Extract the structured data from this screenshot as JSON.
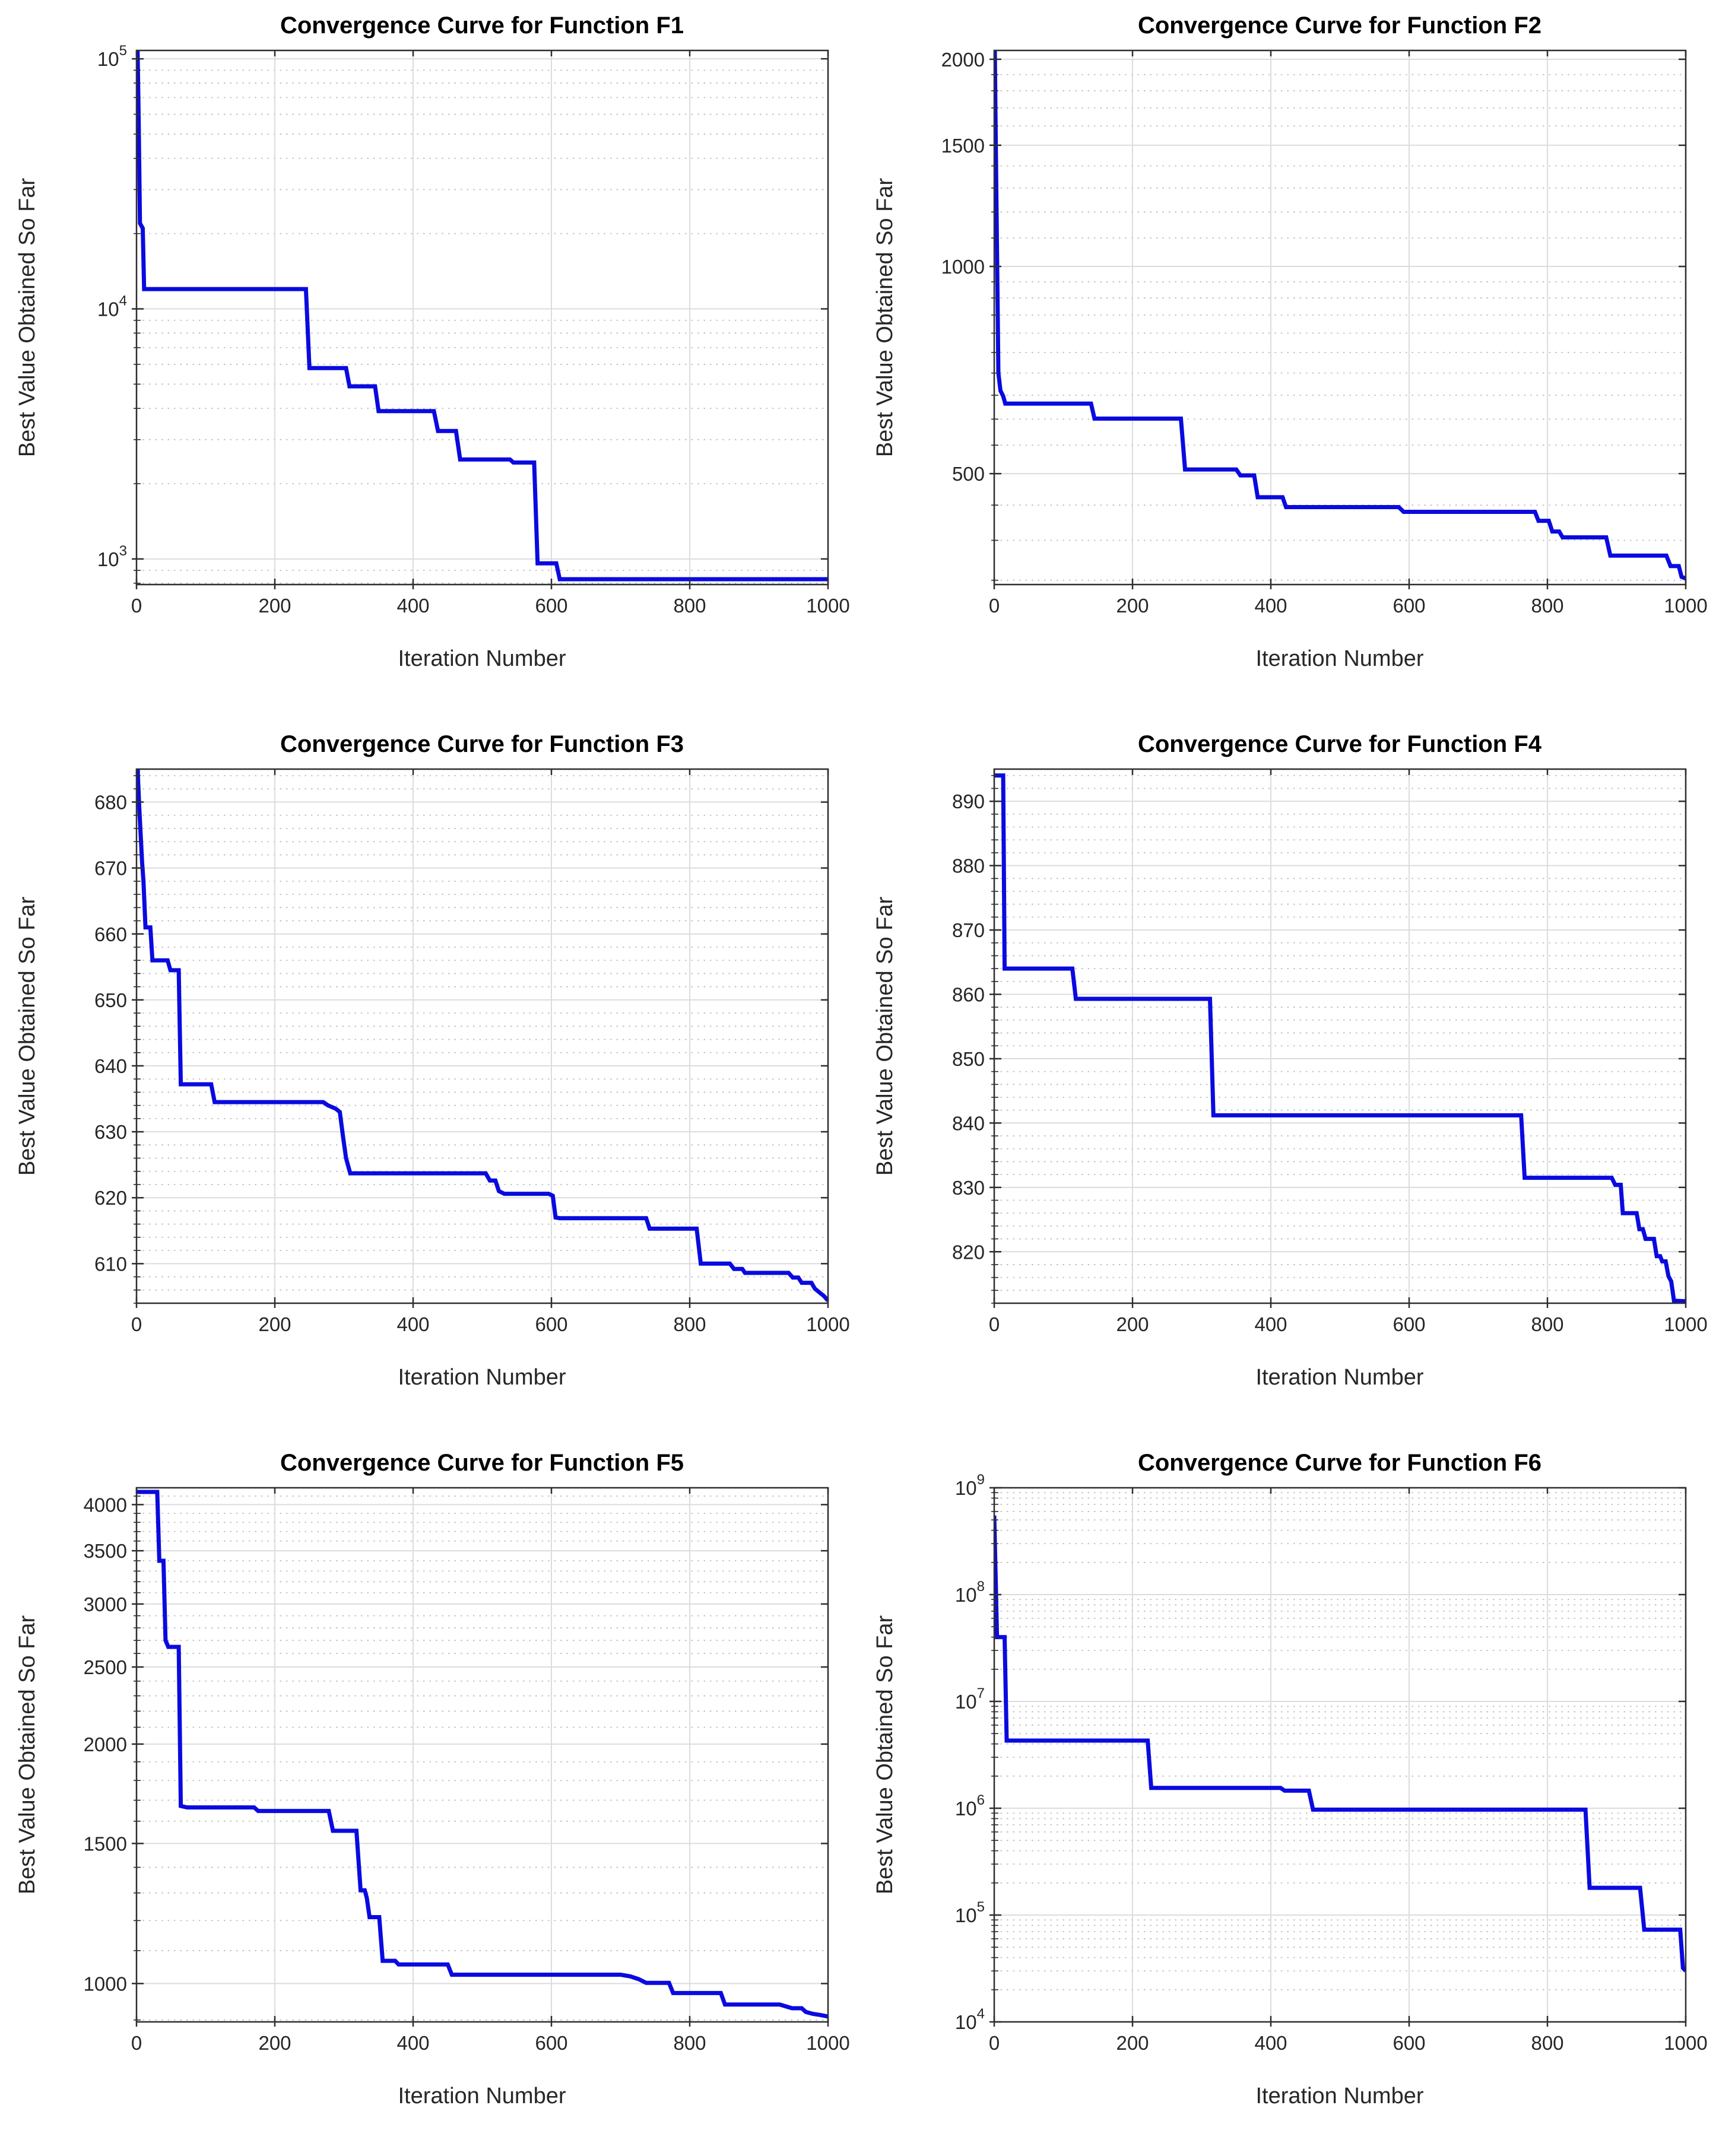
{
  "page": {
    "background": "#ffffff",
    "line_color": "#0a0ae0",
    "grid_major_color": "#dcdcdc",
    "grid_minor_color": "#bdbdbd",
    "axis_color": "#2e2e2e",
    "text_color": "#262626"
  },
  "chart_data": [
    {
      "type": "line",
      "step": true,
      "title": "Convergence Curve for Function F1",
      "xlabel": "Iteration Number",
      "ylabel": "Best Value Obtained So Far",
      "xlim": [
        0,
        1000
      ],
      "xticks": [
        0,
        200,
        400,
        600,
        800,
        1000
      ],
      "yscale": "log",
      "ylim": [
        790,
        108000
      ],
      "yticks": [
        1000,
        10000,
        100000
      ],
      "ytick_style": "pow10",
      "minor_rule": {
        "type": "log-decade"
      },
      "series": [
        {
          "name": "best-value",
          "points": [
            [
              0,
              200000
            ],
            [
              3,
              60000
            ],
            [
              5,
              22000
            ],
            [
              9,
              21000
            ],
            [
              11,
              12000
            ],
            [
              245,
              12000
            ],
            [
              250,
              5800
            ],
            [
              303,
              5800
            ],
            [
              308,
              4900
            ],
            [
              345,
              4900
            ],
            [
              350,
              3900
            ],
            [
              430,
              3900
            ],
            [
              436,
              3250
            ],
            [
              462,
              3250
            ],
            [
              468,
              2500
            ],
            [
              540,
              2500
            ],
            [
              545,
              2430
            ],
            [
              575,
              2430
            ],
            [
              580,
              960
            ],
            [
              607,
              960
            ],
            [
              612,
              830
            ],
            [
              1000,
              830
            ]
          ]
        }
      ]
    },
    {
      "type": "line",
      "step": true,
      "title": "Convergence Curve for Function F2",
      "xlabel": "Iteration Number",
      "ylabel": "Best Value Obtained So Far",
      "xlim": [
        0,
        1000
      ],
      "xticks": [
        0,
        200,
        400,
        600,
        800,
        1000
      ],
      "yscale": "log",
      "ylim": [
        345,
        2060
      ],
      "yticks": [
        500,
        1000,
        1500,
        2000
      ],
      "ytick_style": "plain",
      "minor_rule": {
        "type": "multiples",
        "ranges": [
          [
            350,
            1000,
            50
          ],
          [
            1100,
            2000,
            100
          ]
        ]
      },
      "series": [
        {
          "name": "best-value",
          "points": [
            [
              0,
              2500
            ],
            [
              2,
              1600
            ],
            [
              4,
              1050
            ],
            [
              6,
              700
            ],
            [
              9,
              660
            ],
            [
              13,
              648
            ],
            [
              16,
              632
            ],
            [
              140,
              632
            ],
            [
              145,
              601
            ],
            [
              270,
              601
            ],
            [
              276,
              507
            ],
            [
              350,
              507
            ],
            [
              356,
              497
            ],
            [
              376,
              497
            ],
            [
              381,
              462
            ],
            [
              417,
              462
            ],
            [
              422,
              447
            ],
            [
              585,
              447
            ],
            [
              592,
              440
            ],
            [
              782,
              440
            ],
            [
              787,
              427
            ],
            [
              802,
              427
            ],
            [
              807,
              412
            ],
            [
              817,
              412
            ],
            [
              822,
              404
            ],
            [
              885,
              404
            ],
            [
              891,
              380
            ],
            [
              972,
              380
            ],
            [
              978,
              367
            ],
            [
              990,
              367
            ],
            [
              994,
              354
            ],
            [
              1000,
              352
            ]
          ]
        }
      ]
    },
    {
      "type": "line",
      "step": true,
      "title": "Convergence Curve for Function F3",
      "xlabel": "Iteration Number",
      "ylabel": "Best Value Obtained So Far",
      "xlim": [
        0,
        1000
      ],
      "xticks": [
        0,
        200,
        400,
        600,
        800,
        1000
      ],
      "yscale": "linear",
      "ylim": [
        604,
        685
      ],
      "yticks": [
        610,
        620,
        630,
        640,
        650,
        660,
        670,
        680
      ],
      "ytick_style": "plain",
      "minor_rule": {
        "type": "linear",
        "step": 2
      },
      "series": [
        {
          "name": "best-value",
          "points": [
            [
              0,
              700
            ],
            [
              2,
              684
            ],
            [
              4,
              679
            ],
            [
              6,
              675
            ],
            [
              8,
              671
            ],
            [
              10,
              668
            ],
            [
              13,
              661
            ],
            [
              20,
              661
            ],
            [
              23,
              656
            ],
            [
              45,
              656
            ],
            [
              49,
              654.5
            ],
            [
              61,
              654.5
            ],
            [
              64,
              637.2
            ],
            [
              108,
              637.2
            ],
            [
              113,
              634.5
            ],
            [
              270,
              634.5
            ],
            [
              277,
              634
            ],
            [
              288,
              633.5
            ],
            [
              294,
              633
            ],
            [
              299,
              629
            ],
            [
              303,
              626
            ],
            [
              309,
              623.7
            ],
            [
              505,
              623.7
            ],
            [
              511,
              622.6
            ],
            [
              519,
              622.6
            ],
            [
              524,
              621
            ],
            [
              532,
              620.6
            ],
            [
              596,
              620.6
            ],
            [
              602,
              620.3
            ],
            [
              606,
              617
            ],
            [
              612,
              616.9
            ],
            [
              737,
              616.9
            ],
            [
              742,
              615.3
            ],
            [
              810,
              615.3
            ],
            [
              816,
              610
            ],
            [
              858,
              610
            ],
            [
              864,
              609.2
            ],
            [
              876,
              609.2
            ],
            [
              880,
              608.6
            ],
            [
              943,
              608.6
            ],
            [
              949,
              607.9
            ],
            [
              957,
              607.9
            ],
            [
              962,
              607.1
            ],
            [
              976,
              607.1
            ],
            [
              981,
              606.2
            ],
            [
              988,
              605.6
            ],
            [
              994,
              605.1
            ],
            [
              1000,
              604.4
            ]
          ]
        }
      ]
    },
    {
      "type": "line",
      "step": true,
      "title": "Convergence Curve for Function F4",
      "xlabel": "Iteration Number",
      "ylabel": "Best Value Obtained So Far",
      "xlim": [
        0,
        1000
      ],
      "xticks": [
        0,
        200,
        400,
        600,
        800,
        1000
      ],
      "yscale": "linear",
      "ylim": [
        812,
        895
      ],
      "yticks": [
        820,
        830,
        840,
        850,
        860,
        870,
        880,
        890
      ],
      "ytick_style": "plain",
      "minor_rule": {
        "type": "linear",
        "step": 2
      },
      "series": [
        {
          "name": "best-value",
          "points": [
            [
              0,
              894
            ],
            [
              13,
              894
            ],
            [
              15,
              864
            ],
            [
              113,
              864
            ],
            [
              118,
              859.3
            ],
            [
              312,
              859.3
            ],
            [
              317,
              841.2
            ],
            [
              762,
              841.2
            ],
            [
              767,
              831.5
            ],
            [
              893,
              831.5
            ],
            [
              898,
              830.4
            ],
            [
              906,
              830.4
            ],
            [
              909,
              826
            ],
            [
              929,
              826
            ],
            [
              933,
              823.5
            ],
            [
              938,
              823.5
            ],
            [
              942,
              822
            ],
            [
              954,
              822
            ],
            [
              958,
              819.3
            ],
            [
              963,
              819.3
            ],
            [
              966,
              818.5
            ],
            [
              971,
              818.5
            ],
            [
              975,
              816.2
            ],
            [
              979,
              815.4
            ],
            [
              983,
              812.4
            ],
            [
              1000,
              812.3
            ]
          ]
        }
      ]
    },
    {
      "type": "line",
      "step": true,
      "title": "Convergence Curve for Function F5",
      "xlabel": "Iteration Number",
      "ylabel": "Best Value Obtained So Far",
      "xlim": [
        0,
        1000
      ],
      "xticks": [
        0,
        200,
        400,
        600,
        800,
        1000
      ],
      "yscale": "log",
      "ylim": [
        895,
        4200
      ],
      "yticks": [
        1000,
        1500,
        2000,
        2500,
        3000,
        3500,
        4000
      ],
      "ytick_style": "plain",
      "minor_rule": {
        "type": "multiples",
        "ranges": [
          [
            900,
            4100,
            100
          ]
        ]
      },
      "series": [
        {
          "name": "best-value",
          "points": [
            [
              0,
              4150
            ],
            [
              30,
              4150
            ],
            [
              33,
              3400
            ],
            [
              39,
              3400
            ],
            [
              42,
              2700
            ],
            [
              46,
              2650
            ],
            [
              61,
              2650
            ],
            [
              64,
              1672
            ],
            [
              73,
              1665
            ],
            [
              170,
              1665
            ],
            [
              176,
              1648
            ],
            [
              278,
              1648
            ],
            [
              284,
              1556
            ],
            [
              318,
              1556
            ],
            [
              324,
              1310
            ],
            [
              330,
              1310
            ],
            [
              333,
              1282
            ],
            [
              337,
              1212
            ],
            [
              351,
              1212
            ],
            [
              356,
              1068
            ],
            [
              374,
              1068
            ],
            [
              379,
              1057
            ],
            [
              450,
              1057
            ],
            [
              456,
              1026
            ],
            [
              700,
              1026
            ],
            [
              714,
              1021
            ],
            [
              726,
              1013
            ],
            [
              737,
              1002
            ],
            [
              770,
              1002
            ],
            [
              776,
              973
            ],
            [
              845,
              973
            ],
            [
              851,
              941
            ],
            [
              930,
              941
            ],
            [
              939,
              936
            ],
            [
              948,
              931
            ],
            [
              962,
              931
            ],
            [
              968,
              921
            ],
            [
              978,
              916
            ],
            [
              989,
              913
            ],
            [
              1000,
              909
            ]
          ]
        }
      ]
    },
    {
      "type": "line",
      "step": true,
      "title": "Convergence Curve for Function F6",
      "xlabel": "Iteration Number",
      "ylabel": "Best Value Obtained So Far",
      "xlim": [
        0,
        1000
      ],
      "xticks": [
        0,
        200,
        400,
        600,
        800,
        1000
      ],
      "yscale": "log",
      "ylim": [
        10000,
        1000000000
      ],
      "yticks": [
        10000,
        100000,
        1000000,
        10000000,
        100000000,
        1000000000
      ],
      "ytick_style": "pow10",
      "minor_rule": {
        "type": "log-decade"
      },
      "series": [
        {
          "name": "best-value",
          "points": [
            [
              0,
              550000000
            ],
            [
              4,
              40000000
            ],
            [
              15,
              40000000
            ],
            [
              18,
              4300000
            ],
            [
              222,
              4300000
            ],
            [
              227,
              1550000
            ],
            [
              414,
              1550000
            ],
            [
              420,
              1460000
            ],
            [
              455,
              1460000
            ],
            [
              461,
              970000
            ],
            [
              855,
              970000
            ],
            [
              861,
              180000
            ],
            [
              934,
              180000
            ],
            [
              940,
              73000
            ],
            [
              992,
              73000
            ],
            [
              996,
              32000
            ],
            [
              1000,
              30000
            ]
          ]
        }
      ]
    }
  ]
}
